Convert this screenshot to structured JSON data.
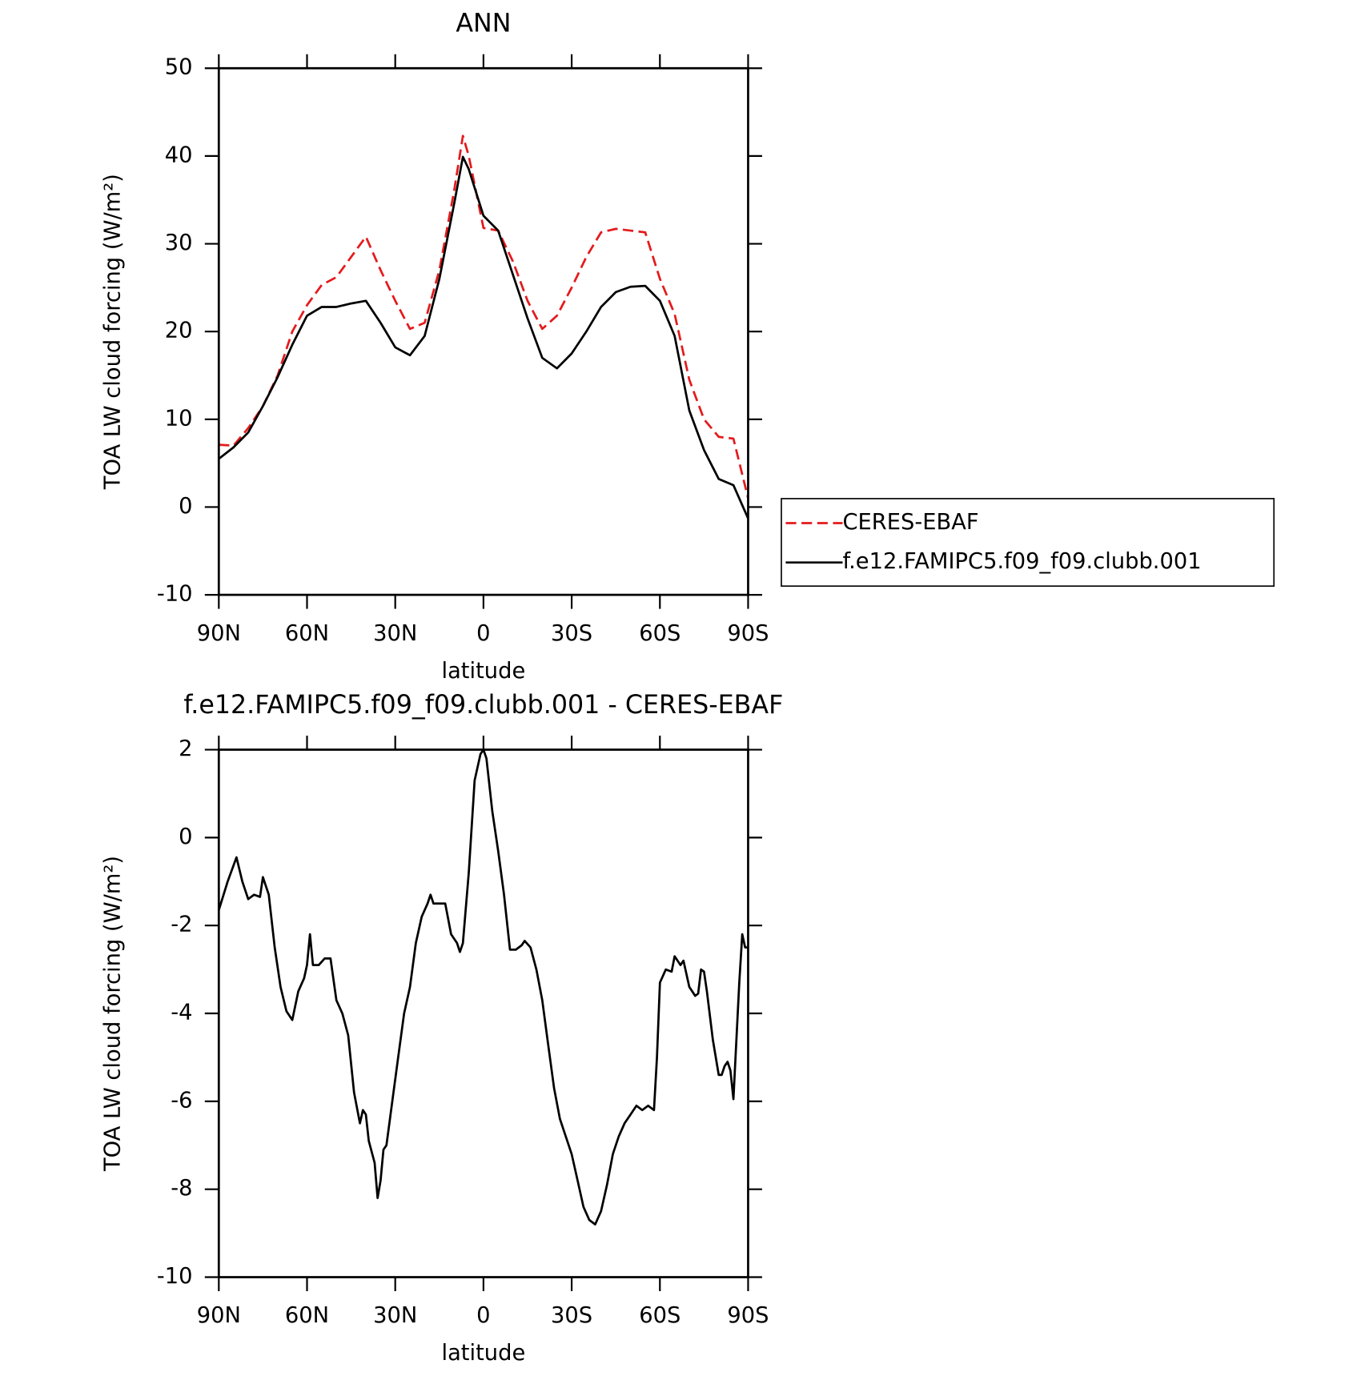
{
  "chart_data": [
    {
      "type": "line",
      "title": "ANN",
      "xlabel": "latitude",
      "ylabel": "TOA LW cloud forcing (W/m²)",
      "x": [
        90,
        85,
        80,
        75,
        70,
        65,
        60,
        55,
        50,
        45,
        40,
        35,
        30,
        25,
        20,
        15,
        10,
        7,
        5,
        0,
        -5,
        -10,
        -15,
        -20,
        -25,
        -30,
        -35,
        -40,
        -45,
        -50,
        -55,
        -60,
        -65,
        -70,
        -75,
        -80,
        -85,
        -90
      ],
      "series": [
        {
          "name": "CERES-EBAF",
          "color": "#e41a1c",
          "dash": true,
          "values": [
            7.1,
            7.0,
            9.0,
            11.5,
            15.0,
            20.0,
            23.0,
            25.3,
            26.2,
            28.5,
            30.8,
            27.0,
            23.5,
            20.3,
            21.0,
            27.0,
            36.0,
            42.3,
            40.0,
            31.8,
            31.5,
            28.0,
            23.5,
            20.3,
            21.8,
            25.0,
            28.5,
            31.3,
            31.7,
            31.5,
            31.3,
            26.0,
            22.0,
            14.5,
            10.0,
            8.0,
            7.8,
            1.0
          ]
        },
        {
          "name": "f.e12.FAMIPC5.f09_f09.clubb.001",
          "color": "#000000",
          "dash": false,
          "values": [
            5.5,
            6.8,
            8.5,
            11.5,
            14.8,
            18.5,
            21.8,
            22.8,
            22.8,
            23.2,
            23.5,
            21.0,
            18.2,
            17.3,
            19.5,
            26.0,
            34.5,
            39.9,
            38.5,
            33.2,
            31.5,
            26.5,
            21.5,
            17.0,
            15.8,
            17.5,
            20.0,
            22.8,
            24.5,
            25.1,
            25.2,
            23.5,
            19.5,
            11.0,
            6.5,
            3.2,
            2.5,
            -1.3
          ]
        }
      ],
      "xlim": [
        90,
        -90
      ],
      "xticks": [
        {
          "value": 90,
          "label": "90N"
        },
        {
          "value": 60,
          "label": "60N"
        },
        {
          "value": 30,
          "label": "30N"
        },
        0,
        {
          "value": -30,
          "label": "30S"
        },
        {
          "value": -60,
          "label": "60S"
        },
        {
          "value": -90,
          "label": "90S"
        }
      ],
      "ylim": [
        -10,
        50
      ],
      "yticks": [
        -10,
        0,
        10,
        20,
        30,
        40,
        50
      ],
      "legend": "right"
    },
    {
      "type": "line",
      "title": "f.e12.FAMIPC5.f09_f09.clubb.001 - CERES-EBAF",
      "xlabel": "latitude",
      "ylabel": "TOA LW cloud forcing (W/m²)",
      "x": [
        90,
        87,
        84,
        82,
        80,
        78,
        76,
        75,
        73,
        71,
        69,
        67,
        65,
        63,
        61,
        60,
        59,
        58,
        56,
        54,
        52,
        50,
        48,
        46,
        44,
        42,
        41,
        40,
        39,
        37,
        36,
        35,
        34,
        33,
        31,
        29,
        27,
        25,
        23,
        21,
        19,
        18,
        17,
        15,
        13,
        11,
        9,
        8,
        7,
        5,
        3,
        1,
        0,
        -1,
        -3,
        -5,
        -7,
        -9,
        -11,
        -13,
        -14,
        -16,
        -18,
        -20,
        -22,
        -24,
        -26,
        -28,
        -30,
        -32,
        -34,
        -36,
        -38,
        -40,
        -42,
        -44,
        -46,
        -48,
        -50,
        -52,
        -54,
        -56,
        -58,
        -59,
        -60,
        -62,
        -64,
        -65,
        -67,
        -68,
        -70,
        -72,
        -73,
        -74,
        -75,
        -76,
        -78,
        -80,
        -81,
        -82,
        -83,
        -84,
        -85,
        -87,
        -88,
        -89,
        -90
      ],
      "series": [
        {
          "name": "f.e12.FAMIPC5.f09_f09.clubb.001 - CERES-EBAF",
          "color": "#000000",
          "dash": false,
          "values": [
            -1.65,
            -1.0,
            -0.45,
            -1.0,
            -1.4,
            -1.3,
            -1.35,
            -0.9,
            -1.3,
            -2.5,
            -3.4,
            -3.95,
            -4.15,
            -3.5,
            -3.2,
            -2.9,
            -2.2,
            -2.9,
            -2.9,
            -2.75,
            -2.75,
            -3.7,
            -4.0,
            -4.5,
            -5.8,
            -6.5,
            -6.2,
            -6.3,
            -6.9,
            -7.4,
            -8.2,
            -7.8,
            -7.1,
            -7.0,
            -6.0,
            -5.0,
            -4.0,
            -3.4,
            -2.4,
            -1.8,
            -1.5,
            -1.3,
            -1.5,
            -1.5,
            -1.5,
            -2.2,
            -2.4,
            -2.6,
            -2.4,
            -0.8,
            1.3,
            1.9,
            2.0,
            1.8,
            0.6,
            -0.3,
            -1.3,
            -2.55,
            -2.55,
            -2.45,
            -2.35,
            -2.5,
            -3.0,
            -3.7,
            -4.7,
            -5.7,
            -6.4,
            -6.8,
            -7.2,
            -7.8,
            -8.4,
            -8.7,
            -8.8,
            -8.5,
            -7.9,
            -7.2,
            -6.8,
            -6.5,
            -6.3,
            -6.1,
            -6.2,
            -6.1,
            -6.2,
            -5.0,
            -3.3,
            -3.0,
            -3.05,
            -2.7,
            -2.9,
            -2.8,
            -3.4,
            -3.6,
            -3.55,
            -3.0,
            -3.05,
            -3.5,
            -4.6,
            -5.4,
            -5.4,
            -5.2,
            -5.1,
            -5.3,
            -5.95,
            -3.3,
            -2.2,
            -2.5,
            -2.5
          ]
        }
      ],
      "xlim": [
        90,
        -90
      ],
      "xticks": [
        {
          "value": 90,
          "label": "90N"
        },
        {
          "value": 60,
          "label": "60N"
        },
        {
          "value": 30,
          "label": "30N"
        },
        0,
        {
          "value": -30,
          "label": "30S"
        },
        {
          "value": -60,
          "label": "60S"
        },
        {
          "value": -90,
          "label": "90S"
        }
      ],
      "ylim": [
        -10,
        2
      ],
      "yticks": [
        -10,
        -8,
        -6,
        -4,
        -2,
        0,
        2
      ]
    }
  ]
}
